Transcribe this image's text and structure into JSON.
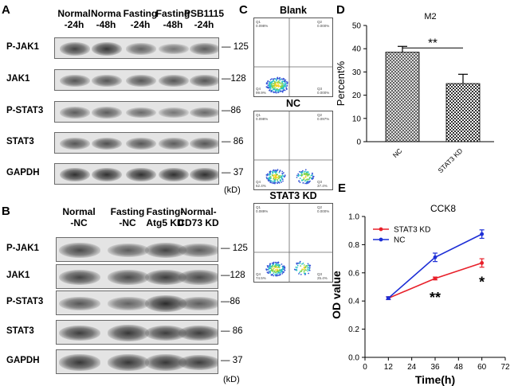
{
  "panelA": {
    "letter": "A",
    "lanes": [
      "Normal\n-24h",
      "Norma\n-48h",
      "Fasting\n-24h",
      "Fasting\n-48h",
      "PSB1115\n-24h"
    ],
    "rows": [
      {
        "label": "P-JAK1",
        "mw": "125",
        "intensity": [
          0.75,
          0.85,
          0.5,
          0.35,
          0.55
        ]
      },
      {
        "label": "JAK1",
        "mw": "128",
        "intensity": [
          0.6,
          0.6,
          0.6,
          0.6,
          0.6
        ]
      },
      {
        "label": "P-STAT3",
        "mw": "86",
        "intensity": [
          0.55,
          0.55,
          0.45,
          0.35,
          0.45
        ]
      },
      {
        "label": "STAT3",
        "mw": "86",
        "intensity": [
          0.6,
          0.65,
          0.6,
          0.55,
          0.6
        ]
      },
      {
        "label": "GAPDH",
        "mw": "37",
        "intensity": [
          0.9,
          0.9,
          0.9,
          0.9,
          0.9
        ]
      }
    ],
    "unit": "(kD)"
  },
  "panelB": {
    "letter": "B",
    "lanes": [
      "Normal\n-NC",
      "Fasting\n-NC",
      "Fasting-\nAtg5 KD",
      "Normal-\nCD73 KD"
    ],
    "rows": [
      {
        "label": "P-JAK1",
        "mw": "125",
        "intensity": [
          0.7,
          0.55,
          0.75,
          0.55
        ]
      },
      {
        "label": "JAK1",
        "mw": "128",
        "intensity": [
          0.75,
          0.7,
          0.8,
          0.7
        ]
      },
      {
        "label": "P-STAT3",
        "mw": "86",
        "intensity": [
          0.6,
          0.5,
          0.95,
          0.55
        ]
      },
      {
        "label": "STAT3",
        "mw": "86",
        "intensity": [
          0.8,
          0.85,
          0.8,
          0.8
        ]
      },
      {
        "label": "GAPDH",
        "mw": "37",
        "intensity": [
          0.85,
          0.85,
          0.85,
          0.8
        ]
      }
    ],
    "unit": "(kD)"
  },
  "panelC": {
    "letter": "C",
    "plots": [
      {
        "title": "Blank",
        "q": [
          "Q1",
          "0.098%",
          "Q2",
          "0.000%",
          "Q4",
          "99.9%",
          "Q3",
          "0.000%"
        ]
      },
      {
        "title": "NC",
        "q": [
          "Q1",
          "0.098%",
          "Q2",
          "0.097%",
          "Q4",
          "62.4%",
          "Q3",
          "37.4%"
        ]
      },
      {
        "title": "STAT3 KD",
        "q": [
          "Q1",
          "0.089%",
          "Q2",
          "0.000%",
          "Q4",
          "74.5%",
          "Q3",
          "25.4%"
        ]
      }
    ]
  },
  "panelD": {
    "letter": "D",
    "chart_data": {
      "type": "bar",
      "title": "M2",
      "categories": [
        "NC",
        "STAT3 KD"
      ],
      "values": [
        38.5,
        25
      ],
      "errors": [
        2.5,
        4
      ],
      "ylabel": "Percent%",
      "ylim": [
        0,
        50
      ],
      "yticks": [
        "0",
        "10",
        "20",
        "30",
        "40",
        "50"
      ],
      "significance": "**"
    }
  },
  "panelE": {
    "letter": "E",
    "chart_data": {
      "type": "line",
      "title": "CCK8",
      "x": [
        12,
        36,
        60
      ],
      "xlabel": "Time(h)",
      "ylabel": "OD value",
      "xlim": [
        0,
        72
      ],
      "ylim": [
        0,
        1.0
      ],
      "xticks": [
        "0",
        "12",
        "24",
        "36",
        "48",
        "60",
        "72"
      ],
      "yticks": [
        "0.0",
        "0.2",
        "0.4",
        "0.6",
        "0.8",
        "1.0"
      ],
      "series": [
        {
          "name": "STAT3 KD",
          "values": [
            0.42,
            0.56,
            0.67
          ],
          "errors": [
            0.01,
            0.01,
            0.03
          ],
          "color": "#e8202a"
        },
        {
          "name": "NC",
          "values": [
            0.42,
            0.71,
            0.875
          ],
          "errors": [
            0.01,
            0.03,
            0.03
          ],
          "color": "#1c2ed6"
        }
      ],
      "annotations": [
        "**",
        "*"
      ]
    }
  }
}
